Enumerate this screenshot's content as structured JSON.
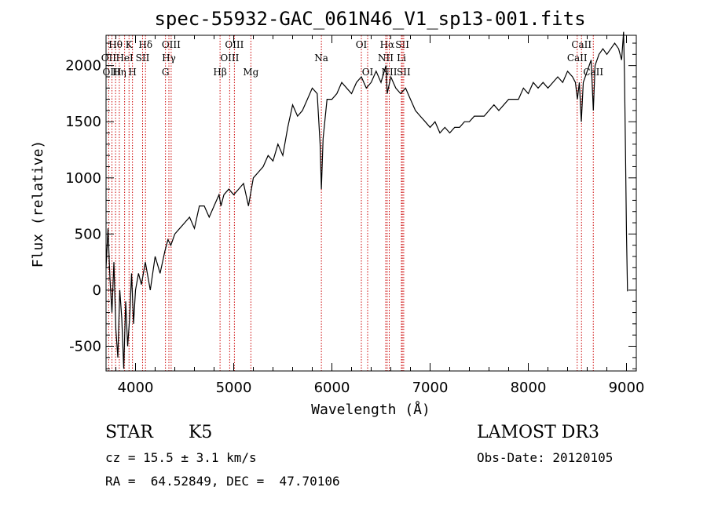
{
  "chart_data": {
    "type": "line",
    "title": "spec-55932-GAC_061N46_V1_sp13-001.fits",
    "xlabel": "Wavelength (Å)",
    "ylabel": "Flux (relative)",
    "xlim": [
      3700,
      9100
    ],
    "ylim": [
      -720,
      2270
    ],
    "xticks": [
      4000,
      5000,
      6000,
      7000,
      8000,
      9000
    ],
    "yticks": [
      -500,
      0,
      500,
      1000,
      1500,
      2000
    ],
    "xtick_labels": [
      "4000",
      "5000",
      "6000",
      "7000",
      "8000",
      "9000"
    ],
    "ytick_labels": [
      "-500",
      "0",
      "500",
      "1000",
      "1500",
      "2000"
    ],
    "series": [
      {
        "name": "flux",
        "x": [
          3700,
          3720,
          3740,
          3760,
          3780,
          3800,
          3820,
          3840,
          3860,
          3880,
          3900,
          3920,
          3940,
          3960,
          3980,
          4000,
          4030,
          4060,
          4100,
          4150,
          4200,
          4250,
          4300,
          4330,
          4360,
          4400,
          4450,
          4500,
          4550,
          4600,
          4650,
          4700,
          4750,
          4800,
          4850,
          4870,
          4900,
          4950,
          5000,
          5050,
          5100,
          5150,
          5180,
          5200,
          5250,
          5300,
          5350,
          5400,
          5450,
          5500,
          5550,
          5600,
          5650,
          5700,
          5750,
          5800,
          5850,
          5880,
          5893,
          5910,
          5950,
          6000,
          6050,
          6100,
          6150,
          6200,
          6250,
          6300,
          6350,
          6400,
          6450,
          6500,
          6550,
          6563,
          6600,
          6650,
          6700,
          6750,
          6800,
          6850,
          6900,
          6950,
          7000,
          7050,
          7100,
          7150,
          7200,
          7250,
          7300,
          7350,
          7400,
          7450,
          7500,
          7550,
          7600,
          7650,
          7700,
          7750,
          7800,
          7850,
          7900,
          7950,
          8000,
          8050,
          8100,
          8150,
          8200,
          8250,
          8300,
          8350,
          8400,
          8450,
          8480,
          8500,
          8520,
          8540,
          8560,
          8600,
          8640,
          8662,
          8680,
          8720,
          8760,
          8800,
          8840,
          8880,
          8920,
          8950,
          8970,
          8980,
          8990,
          9000,
          9010
        ],
        "y": [
          200,
          550,
          100,
          -200,
          250,
          -350,
          -600,
          0,
          -250,
          -700,
          -100,
          -500,
          -250,
          150,
          -300,
          0,
          150,
          50,
          250,
          0,
          300,
          150,
          350,
          450,
          400,
          500,
          550,
          600,
          650,
          550,
          750,
          750,
          650,
          750,
          850,
          750,
          850,
          900,
          850,
          900,
          950,
          750,
          900,
          1000,
          1050,
          1100,
          1200,
          1150,
          1300,
          1200,
          1450,
          1650,
          1550,
          1600,
          1700,
          1800,
          1750,
          1300,
          900,
          1350,
          1700,
          1700,
          1750,
          1850,
          1800,
          1750,
          1850,
          1900,
          1800,
          1850,
          1950,
          1850,
          2000,
          1750,
          1900,
          1800,
          1750,
          1800,
          1700,
          1600,
          1550,
          1500,
          1450,
          1500,
          1400,
          1450,
          1400,
          1450,
          1450,
          1500,
          1500,
          1550,
          1550,
          1550,
          1600,
          1650,
          1600,
          1650,
          1700,
          1700,
          1700,
          1800,
          1750,
          1850,
          1800,
          1850,
          1800,
          1850,
          1900,
          1850,
          1950,
          1900,
          1850,
          1700,
          1850,
          1500,
          1850,
          1950,
          2050,
          1600,
          2000,
          2100,
          2150,
          2100,
          2150,
          2200,
          2150,
          2050,
          2300,
          1900,
          1200,
          500,
          -10
        ]
      }
    ],
    "line_markers": [
      {
        "label": "Hθ",
        "wavelength": 3797,
        "row": 0
      },
      {
        "label": "OII",
        "wavelength": 3727,
        "row": 1
      },
      {
        "label": "OIII",
        "wavelength": 3760,
        "row": 2
      },
      {
        "label": "K",
        "wavelength": 3934,
        "row": 0
      },
      {
        "label": "HeI",
        "wavelength": 3889,
        "row": 1
      },
      {
        "label": "Hη",
        "wavelength": 3835,
        "row": 2
      },
      {
        "label": "H",
        "wavelength": 3969,
        "row": 2
      },
      {
        "label": "Hδ",
        "wavelength": 4102,
        "row": 0
      },
      {
        "label": "SII",
        "wavelength": 4072,
        "row": 1
      },
      {
        "label": "OIII",
        "wavelength": 4363,
        "row": 0
      },
      {
        "label": "Hγ",
        "wavelength": 4340,
        "row": 1
      },
      {
        "label": "G",
        "wavelength": 4305,
        "row": 2
      },
      {
        "label": "Hβ",
        "wavelength": 4861,
        "row": 2
      },
      {
        "label": "OIII",
        "wavelength": 5007,
        "row": 0
      },
      {
        "label": "OIII",
        "wavelength": 4959,
        "row": 1
      },
      {
        "label": "Mg",
        "wavelength": 5175,
        "row": 2
      },
      {
        "label": "Na",
        "wavelength": 5893,
        "row": 1
      },
      {
        "label": "OI",
        "wavelength": 6300,
        "row": 0
      },
      {
        "label": "OI",
        "wavelength": 6364,
        "row": 2
      },
      {
        "label": "Hα",
        "wavelength": 6563,
        "row": 0
      },
      {
        "label": "NII",
        "wavelength": 6548,
        "row": 1
      },
      {
        "label": "NII",
        "wavelength": 6584,
        "row": 2
      },
      {
        "label": "SII",
        "wavelength": 6717,
        "row": 0
      },
      {
        "label": "Li",
        "wavelength": 6708,
        "row": 1
      },
      {
        "label": "SII",
        "wavelength": 6731,
        "row": 2
      },
      {
        "label": "CaII",
        "wavelength": 8542,
        "row": 0
      },
      {
        "label": "CaII",
        "wavelength": 8498,
        "row": 1
      },
      {
        "label": "CaII",
        "wavelength": 8662,
        "row": 2
      }
    ]
  },
  "info": {
    "class": "STAR",
    "subclass": "K5",
    "survey": "LAMOST DR3",
    "redshift": "cz = 15.5 ± 3.1 km/s",
    "obs_date": "Obs-Date: 20120105",
    "coords": "RA =  64.52849, DEC =  47.70106"
  },
  "colors": {
    "spectrum": "#000000",
    "marker_line": "#cc0000",
    "background": "#ffffff"
  }
}
